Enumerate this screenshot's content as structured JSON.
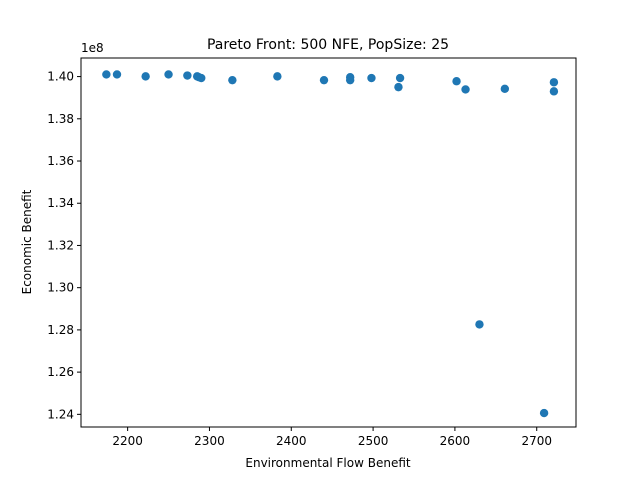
{
  "chart_data": {
    "type": "scatter",
    "title": "Pareto Front: 500 NFE, PopSize: 25",
    "xlabel": "Environmental Flow Benefit",
    "ylabel": "Economic Benefit",
    "offset_text": "1e8",
    "xlim": [
      2143,
      2748
    ],
    "ylim": [
      1.234,
      1.4088
    ],
    "xticks": [
      2200,
      2300,
      2400,
      2500,
      2600,
      2700
    ],
    "xtick_labels": [
      "2200",
      "2300",
      "2400",
      "2500",
      "2600",
      "2700"
    ],
    "yticks": [
      1.24,
      1.26,
      1.28,
      1.3,
      1.32,
      1.34,
      1.36,
      1.38,
      1.4
    ],
    "ytick_labels": [
      "1.24",
      "1.26",
      "1.28",
      "1.30",
      "1.32",
      "1.34",
      "1.36",
      "1.38",
      "1.40"
    ],
    "grid": false,
    "marker_color": "#1f77b4",
    "points": [
      {
        "x": 2174,
        "y": 1.401
      },
      {
        "x": 2187,
        "y": 1.401
      },
      {
        "x": 2222,
        "y": 1.4001
      },
      {
        "x": 2250,
        "y": 1.401
      },
      {
        "x": 2273,
        "y": 1.4005
      },
      {
        "x": 2285,
        "y": 1.4001
      },
      {
        "x": 2287,
        "y": 1.3997
      },
      {
        "x": 2290,
        "y": 1.3993
      },
      {
        "x": 2328,
        "y": 1.3983
      },
      {
        "x": 2383,
        "y": 1.4001
      },
      {
        "x": 2440,
        "y": 1.3983
      },
      {
        "x": 2472,
        "y": 1.3997
      },
      {
        "x": 2472,
        "y": 1.3983
      },
      {
        "x": 2498,
        "y": 1.3993
      },
      {
        "x": 2531,
        "y": 1.395
      },
      {
        "x": 2533,
        "y": 1.3993
      },
      {
        "x": 2602,
        "y": 1.3978
      },
      {
        "x": 2613,
        "y": 1.3939
      },
      {
        "x": 2630,
        "y": 1.2826
      },
      {
        "x": 2661,
        "y": 1.3942
      },
      {
        "x": 2709,
        "y": 1.2406
      },
      {
        "x": 2721,
        "y": 1.3973
      },
      {
        "x": 2721,
        "y": 1.393
      }
    ]
  }
}
